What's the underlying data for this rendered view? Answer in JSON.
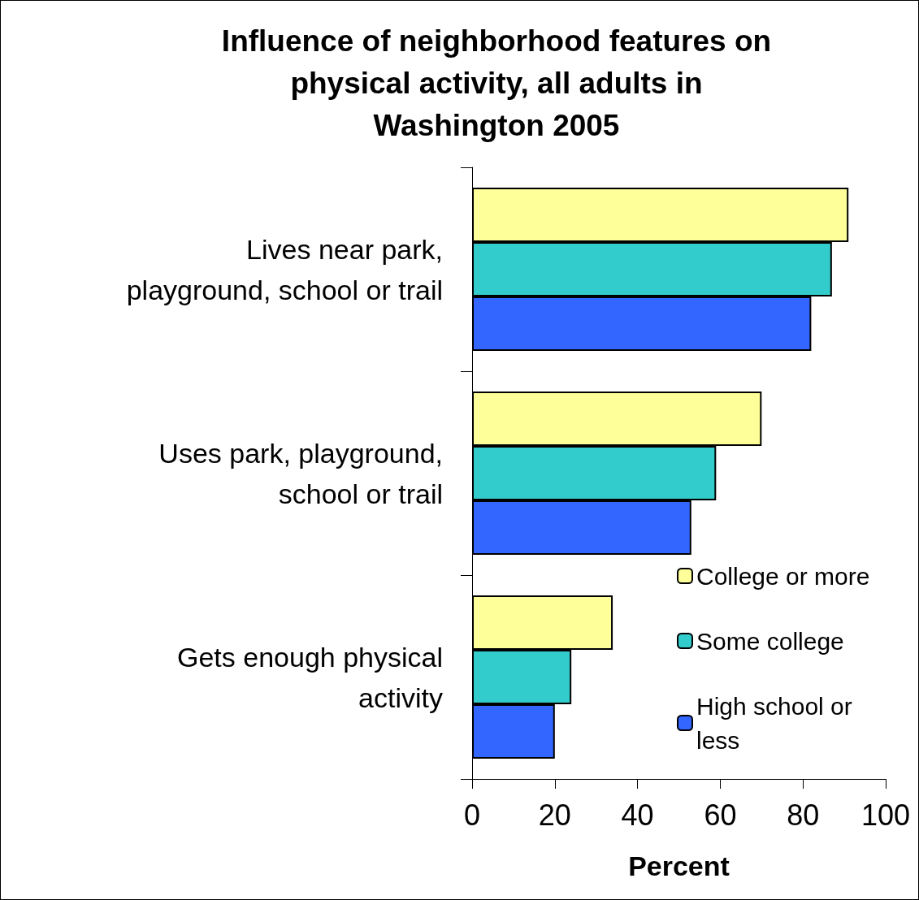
{
  "chart_data": {
    "type": "bar",
    "orientation": "horizontal",
    "title": "Influence of neighborhood features on\nphysical activity, all adults in\nWashington 2005",
    "xlabel": "Percent",
    "categories": [
      "Lives near park,\nplayground, school or trail",
      "Uses park, playground,\nschool or trail",
      "Gets enough physical\nactivity"
    ],
    "series": [
      {
        "name": "College or more",
        "color": "#ffff99",
        "values": [
          91,
          70,
          34
        ]
      },
      {
        "name": "Some college",
        "color": "#33cccc",
        "values": [
          87,
          59,
          24
        ]
      },
      {
        "name": "High school or less",
        "color": "#3366ff",
        "values": [
          82,
          53,
          20
        ]
      }
    ],
    "xlim": [
      0,
      100
    ],
    "xticks": [
      0,
      20,
      40,
      60,
      80,
      100
    ],
    "grid": false,
    "legend": "bottom right"
  }
}
